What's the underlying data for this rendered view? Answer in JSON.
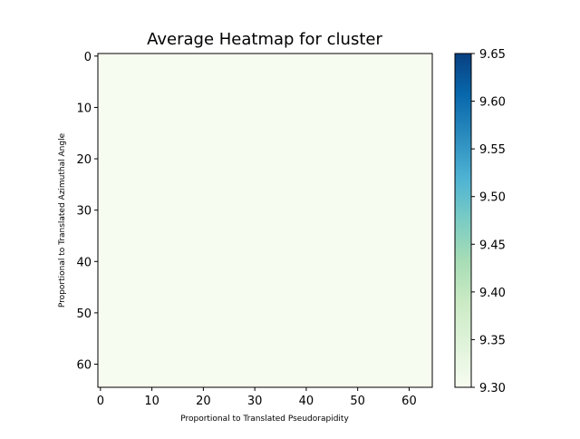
{
  "chart_data": {
    "type": "heatmap",
    "title": "Average Heatmap for cluster",
    "xlabel": "Proportional to Translated Pseudorapidity",
    "ylabel": "Proportional to Translated Azimuthal Angle",
    "xlim": [
      -0.5,
      64.5
    ],
    "ylim": [
      64.5,
      -0.5
    ],
    "x_ticks": [
      0,
      10,
      20,
      30,
      40,
      50,
      60
    ],
    "y_ticks": [
      0,
      10,
      20,
      30,
      40,
      50,
      60
    ],
    "rows": 65,
    "cols": 65,
    "fill_value": 9.3,
    "colormap": "GnBu",
    "colorbar": {
      "min": 9.3,
      "max": 9.65,
      "ticks": [
        "9.30",
        "9.35",
        "9.40",
        "9.45",
        "9.50",
        "9.55",
        "9.60",
        "9.65"
      ]
    },
    "colors": {
      "cell": "#f7fcf0",
      "colormap_stops": [
        "#f7fcf0",
        "#e0f3db",
        "#ccebc5",
        "#a8ddb5",
        "#7bccc4",
        "#4eb3d3",
        "#2b8cbe",
        "#0868ac",
        "#084081"
      ]
    },
    "grid": false
  }
}
